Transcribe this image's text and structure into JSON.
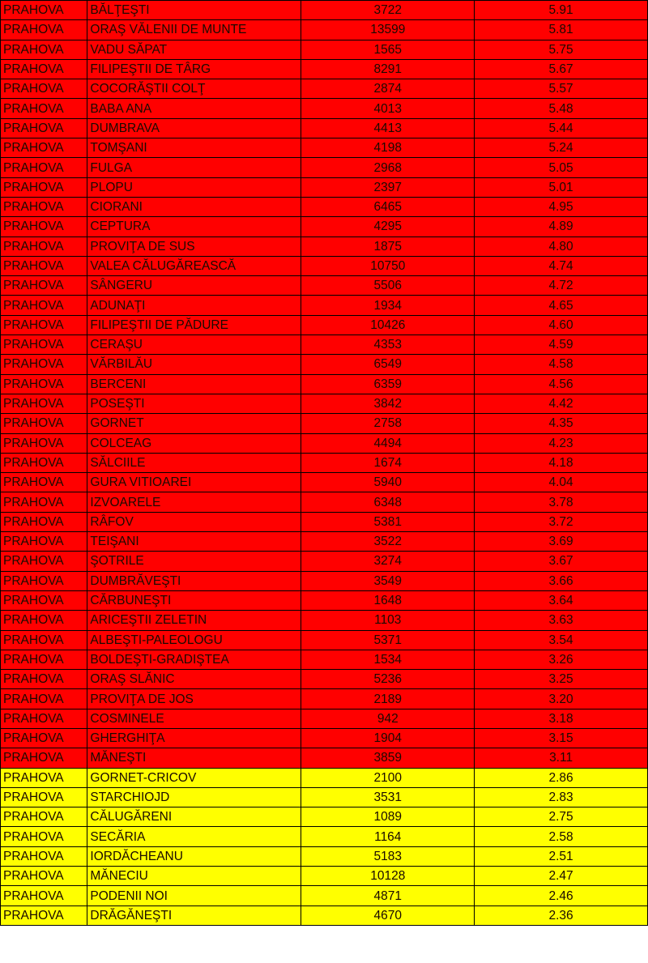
{
  "colors": {
    "high": "#ff0000",
    "medium": "#ffff00"
  },
  "rows": [
    {
      "county": "PRAHOVA",
      "locality": "BĂLŢEŞTI",
      "population": "3722",
      "rate": "5.91",
      "level": "high"
    },
    {
      "county": "PRAHOVA",
      "locality": "ORAŞ VĂLENII DE MUNTE",
      "population": "13599",
      "rate": "5.81",
      "level": "high"
    },
    {
      "county": "PRAHOVA",
      "locality": "VADU SĂPAT",
      "population": "1565",
      "rate": "5.75",
      "level": "high"
    },
    {
      "county": "PRAHOVA",
      "locality": "FILIPEŞTII DE TÂRG",
      "population": "8291",
      "rate": "5.67",
      "level": "high"
    },
    {
      "county": "PRAHOVA",
      "locality": "COCORĂŞTII COLŢ",
      "population": "2874",
      "rate": "5.57",
      "level": "high"
    },
    {
      "county": "PRAHOVA",
      "locality": "BABA ANA",
      "population": "4013",
      "rate": "5.48",
      "level": "high"
    },
    {
      "county": "PRAHOVA",
      "locality": "DUMBRAVA",
      "population": "4413",
      "rate": "5.44",
      "level": "high"
    },
    {
      "county": "PRAHOVA",
      "locality": "TOMŞANI",
      "population": "4198",
      "rate": "5.24",
      "level": "high"
    },
    {
      "county": "PRAHOVA",
      "locality": "FULGA",
      "population": "2968",
      "rate": "5.05",
      "level": "high"
    },
    {
      "county": "PRAHOVA",
      "locality": "PLOPU",
      "population": "2397",
      "rate": "5.01",
      "level": "high"
    },
    {
      "county": "PRAHOVA",
      "locality": "CIORANI",
      "population": "6465",
      "rate": "4.95",
      "level": "high"
    },
    {
      "county": "PRAHOVA",
      "locality": "CEPTURA",
      "population": "4295",
      "rate": "4.89",
      "level": "high"
    },
    {
      "county": "PRAHOVA",
      "locality": "PROVIŢA DE SUS",
      "population": "1875",
      "rate": "4.80",
      "level": "high"
    },
    {
      "county": "PRAHOVA",
      "locality": "VALEA CĂLUGĂREASCĂ",
      "population": "10750",
      "rate": "4.74",
      "level": "high"
    },
    {
      "county": "PRAHOVA",
      "locality": "SÂNGERU",
      "population": "5506",
      "rate": "4.72",
      "level": "high"
    },
    {
      "county": "PRAHOVA",
      "locality": "ADUNAŢI",
      "population": "1934",
      "rate": "4.65",
      "level": "high"
    },
    {
      "county": "PRAHOVA",
      "locality": "FILIPEŞTII DE PĂDURE",
      "population": "10426",
      "rate": "4.60",
      "level": "high"
    },
    {
      "county": "PRAHOVA",
      "locality": "CERAŞU",
      "population": "4353",
      "rate": "4.59",
      "level": "high"
    },
    {
      "county": "PRAHOVA",
      "locality": "VĂRBILĂU",
      "population": "6549",
      "rate": "4.58",
      "level": "high"
    },
    {
      "county": "PRAHOVA",
      "locality": "BERCENI",
      "population": "6359",
      "rate": "4.56",
      "level": "high"
    },
    {
      "county": "PRAHOVA",
      "locality": "POSEŞTI",
      "population": "3842",
      "rate": "4.42",
      "level": "high"
    },
    {
      "county": "PRAHOVA",
      "locality": "GORNET",
      "population": "2758",
      "rate": "4.35",
      "level": "high"
    },
    {
      "county": "PRAHOVA",
      "locality": "COLCEAG",
      "population": "4494",
      "rate": "4.23",
      "level": "high"
    },
    {
      "county": "PRAHOVA",
      "locality": "SĂLCIILE",
      "population": "1674",
      "rate": "4.18",
      "level": "high"
    },
    {
      "county": "PRAHOVA",
      "locality": "GURA VITIOAREI",
      "population": "5940",
      "rate": "4.04",
      "level": "high"
    },
    {
      "county": "PRAHOVA",
      "locality": "IZVOARELE",
      "population": "6348",
      "rate": "3.78",
      "level": "high"
    },
    {
      "county": "PRAHOVA",
      "locality": "RÂFOV",
      "population": "5381",
      "rate": "3.72",
      "level": "high"
    },
    {
      "county": "PRAHOVA",
      "locality": "TEIŞANI",
      "population": "3522",
      "rate": "3.69",
      "level": "high"
    },
    {
      "county": "PRAHOVA",
      "locality": "ŞOTRILE",
      "population": "3274",
      "rate": "3.67",
      "level": "high"
    },
    {
      "county": "PRAHOVA",
      "locality": "DUMBRĂVEŞTI",
      "population": "3549",
      "rate": "3.66",
      "level": "high"
    },
    {
      "county": "PRAHOVA",
      "locality": "CĂRBUNEŞTI",
      "population": "1648",
      "rate": "3.64",
      "level": "high"
    },
    {
      "county": "PRAHOVA",
      "locality": "ARICEŞTII ZELETIN",
      "population": "1103",
      "rate": "3.63",
      "level": "high"
    },
    {
      "county": "PRAHOVA",
      "locality": "ALBEŞTI-PALEOLOGU",
      "population": "5371",
      "rate": "3.54",
      "level": "high"
    },
    {
      "county": "PRAHOVA",
      "locality": "BOLDEŞTI-GRADIŞTEA",
      "population": "1534",
      "rate": "3.26",
      "level": "high"
    },
    {
      "county": "PRAHOVA",
      "locality": "ORAŞ SLĂNIC",
      "population": "5236",
      "rate": "3.25",
      "level": "high"
    },
    {
      "county": "PRAHOVA",
      "locality": "PROVIŢA DE JOS",
      "population": "2189",
      "rate": "3.20",
      "level": "high"
    },
    {
      "county": "PRAHOVA",
      "locality": "COSMINELE",
      "population": "942",
      "rate": "3.18",
      "level": "high"
    },
    {
      "county": "PRAHOVA",
      "locality": "GHERGHIŢA",
      "population": "1904",
      "rate": "3.15",
      "level": "high"
    },
    {
      "county": "PRAHOVA",
      "locality": "MĂNEŞTI",
      "population": "3859",
      "rate": "3.11",
      "level": "high"
    },
    {
      "county": "PRAHOVA",
      "locality": "GORNET-CRICOV",
      "population": "2100",
      "rate": "2.86",
      "level": "medium"
    },
    {
      "county": "PRAHOVA",
      "locality": "STARCHIOJD",
      "population": "3531",
      "rate": "2.83",
      "level": "medium"
    },
    {
      "county": "PRAHOVA",
      "locality": "CĂLUGĂRENI",
      "population": "1089",
      "rate": "2.75",
      "level": "medium"
    },
    {
      "county": "PRAHOVA",
      "locality": "SECĂRIA",
      "population": "1164",
      "rate": "2.58",
      "level": "medium"
    },
    {
      "county": "PRAHOVA",
      "locality": "IORDĂCHEANU",
      "population": "5183",
      "rate": "2.51",
      "level": "medium"
    },
    {
      "county": "PRAHOVA",
      "locality": "MĂNECIU",
      "population": "10128",
      "rate": "2.47",
      "level": "medium"
    },
    {
      "county": "PRAHOVA",
      "locality": "PODENII NOI",
      "population": "4871",
      "rate": "2.46",
      "level": "medium"
    },
    {
      "county": "PRAHOVA",
      "locality": "DRĂGĂNEŞTI",
      "population": "4670",
      "rate": "2.36",
      "level": "medium"
    }
  ]
}
